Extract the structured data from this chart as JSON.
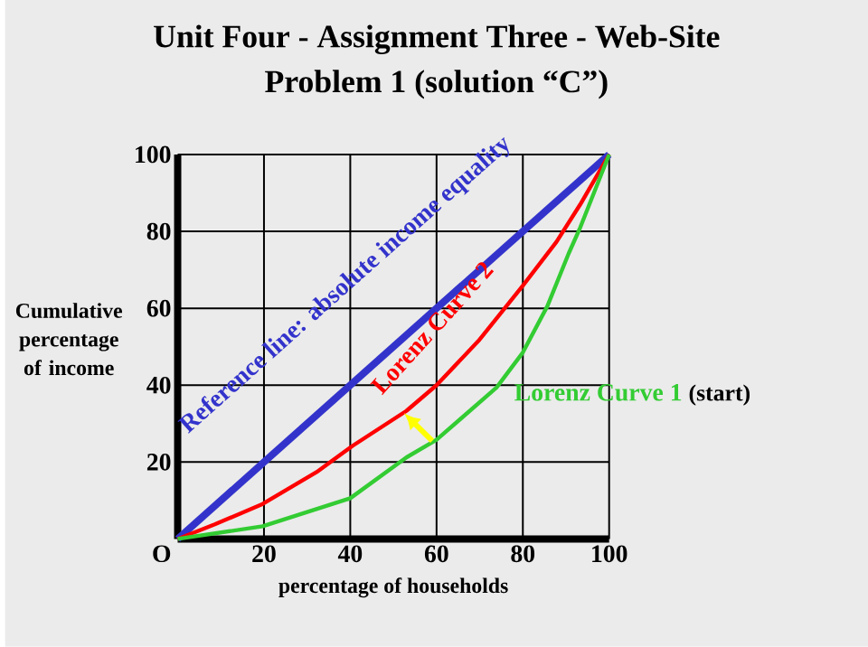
{
  "chart_data": {
    "type": "line",
    "title": "Unit Four - Assignment Three - Web-Site",
    "subtitle": "Problem 1 (solution “C”)",
    "xlabel": "percentage of households",
    "ylabel": "Cumulative percentage of income",
    "xlim": [
      0,
      100
    ],
    "ylim": [
      0,
      100
    ],
    "xticks": [
      20,
      40,
      60,
      80,
      100
    ],
    "yticks": [
      20,
      40,
      60,
      80,
      100
    ],
    "grid": true,
    "marker": "none",
    "line_style": "solid",
    "annotations": [
      {
        "text": "O",
        "x": 0,
        "y": 0
      },
      "(start)"
    ],
    "series": [
      {
        "name": "Reference line: absolute income equality",
        "color": "#3333cc",
        "x": [
          0,
          100
        ],
        "values": [
          0,
          100
        ]
      },
      {
        "name": "Lorenz Curve 2",
        "color": "#ff0000",
        "x": [
          0,
          8.6,
          19.7,
          32.2,
          40.5,
          53,
          60,
          69.7,
          80,
          87.8,
          93.3,
          100
        ],
        "values": [
          0,
          3.8,
          9.1,
          17.4,
          24.2,
          33.3,
          40,
          51.5,
          65.9,
          77.3,
          87,
          100
        ]
      },
      {
        "name": "Lorenz Curve 1",
        "color": "#33cc33",
        "x": [
          0,
          19.7,
          40,
          53,
          60,
          73.9,
          80,
          85.7,
          90.6,
          93.3,
          100
        ],
        "values": [
          0,
          3.3,
          10.6,
          21.2,
          25.8,
          39.4,
          48.5,
          60.6,
          74.2,
          81,
          100
        ]
      }
    ]
  }
}
